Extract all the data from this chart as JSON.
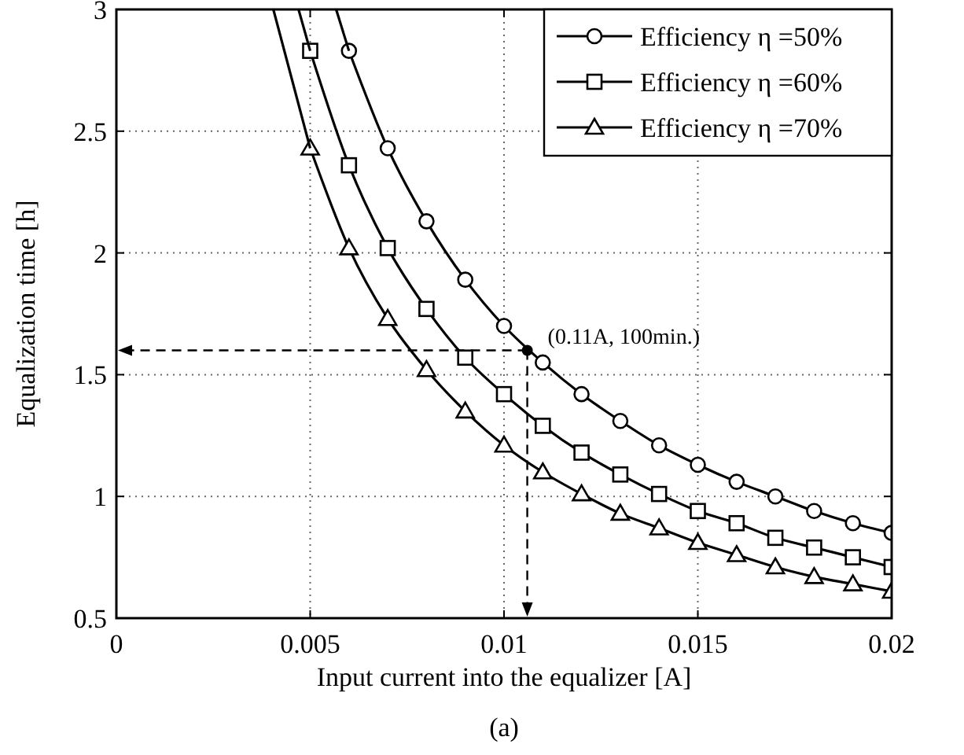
{
  "chart_data": {
    "type": "line",
    "xlabel": "Input current into the equalizer [A]",
    "ylabel": "Equalization time [h]",
    "xlim": [
      0,
      0.02
    ],
    "xticks": [
      0,
      0.005,
      0.01,
      0.015,
      0.02
    ],
    "ylim": [
      0.5,
      3
    ],
    "yticks": [
      0.5,
      1,
      1.5,
      2,
      2.5,
      3
    ],
    "grid": true,
    "legend": "top right",
    "line_style": "solid",
    "series": [
      {
        "name": "Efficiency η =50%",
        "color": "#000000",
        "marker": "circle",
        "x": [
          0.006,
          0.007,
          0.008,
          0.009,
          0.01,
          0.011,
          0.012,
          0.013,
          0.014,
          0.015,
          0.016,
          0.017,
          0.018,
          0.019,
          0.02
        ],
        "values": [
          2.83,
          2.43,
          2.13,
          1.89,
          1.7,
          1.55,
          1.42,
          1.31,
          1.21,
          1.13,
          1.06,
          1.0,
          0.94,
          0.89,
          0.85
        ]
      },
      {
        "name": "Efficiency η =60%",
        "color": "#000000",
        "marker": "square",
        "x": [
          0.005,
          0.006,
          0.007,
          0.008,
          0.009,
          0.01,
          0.011,
          0.012,
          0.013,
          0.014,
          0.015,
          0.016,
          0.017,
          0.018,
          0.019,
          0.02
        ],
        "values": [
          2.83,
          2.36,
          2.02,
          1.77,
          1.57,
          1.42,
          1.29,
          1.18,
          1.09,
          1.01,
          0.94,
          0.89,
          0.83,
          0.79,
          0.75,
          0.71
        ]
      },
      {
        "name": "Efficiency η =70%",
        "color": "#000000",
        "marker": "triangle",
        "x": [
          0.005,
          0.006,
          0.007,
          0.008,
          0.009,
          0.01,
          0.011,
          0.012,
          0.013,
          0.014,
          0.015,
          0.016,
          0.017,
          0.018,
          0.019,
          0.02
        ],
        "values": [
          2.43,
          2.02,
          1.73,
          1.52,
          1.35,
          1.21,
          1.1,
          1.01,
          0.93,
          0.87,
          0.81,
          0.76,
          0.71,
          0.67,
          0.64,
          0.61
        ]
      },
      {
        "color": "#000000",
        "marker": "none",
        "x": [
          0.00567,
          0.006
        ],
        "values": [
          3,
          2.83
        ]
      },
      {
        "color": "#000000",
        "marker": "none",
        "x": [
          0.0047,
          0.005
        ],
        "values": [
          3,
          2.83
        ]
      },
      {
        "color": "#000000",
        "marker": "none",
        "x": [
          0.00405,
          0.005
        ],
        "values": [
          3,
          2.43
        ]
      }
    ],
    "annotations": [
      {
        "text": "(0.11A, 100min.)",
        "x": 0.0106,
        "y": 1.6
      },
      "(a)"
    ]
  }
}
